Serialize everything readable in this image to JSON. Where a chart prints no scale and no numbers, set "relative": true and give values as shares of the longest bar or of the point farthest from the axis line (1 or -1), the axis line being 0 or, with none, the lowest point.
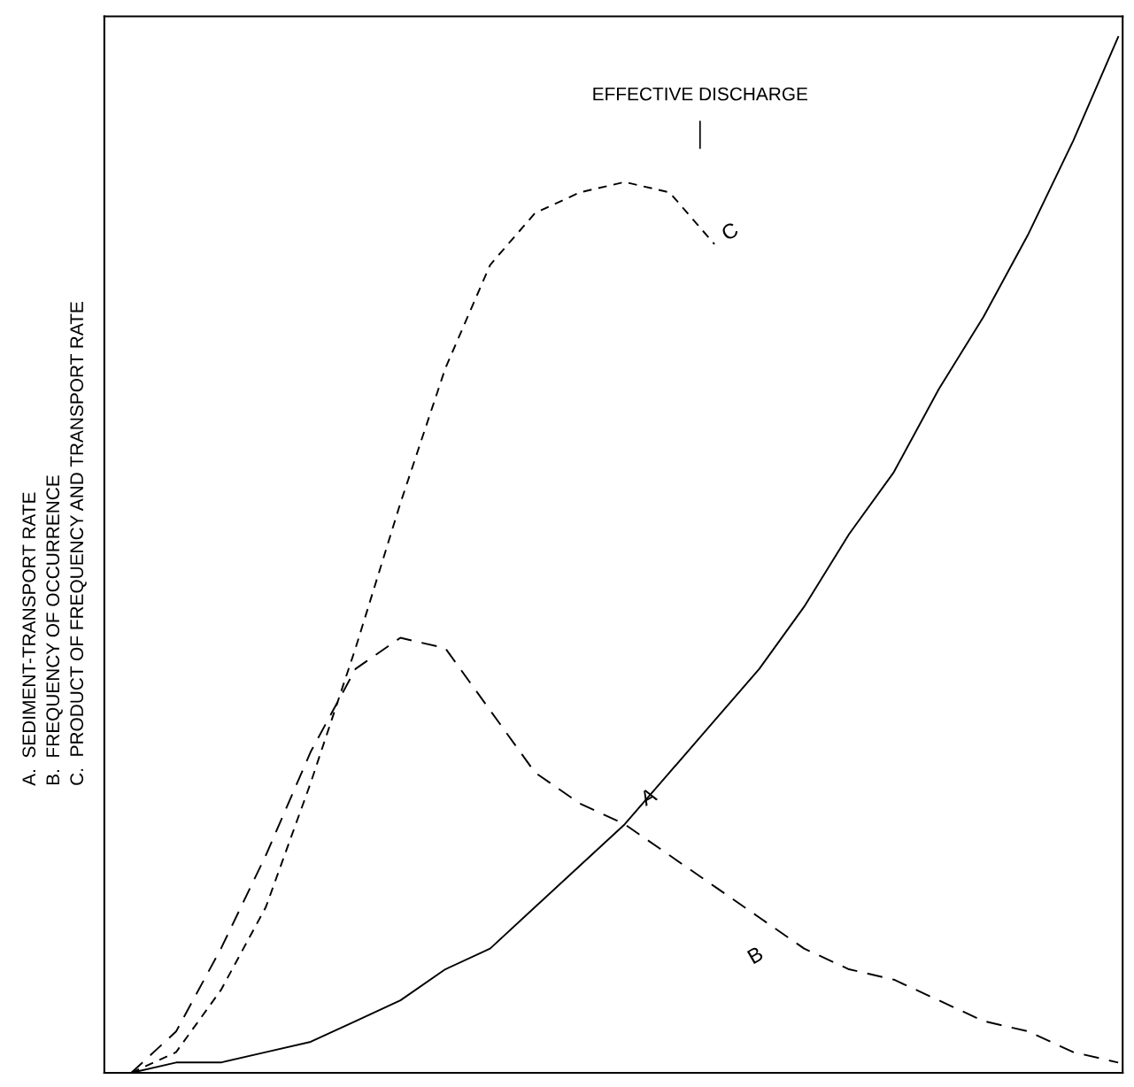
{
  "chart_data": {
    "type": "line",
    "relative": true,
    "ylabel": "A.  SEDIMENT-TRANSPORT RATE\nB.  FREQUENCY OF OCCURRENCE\nC.  PRODUCT OF FREQUENCY AND TRANSPORT RATE",
    "annotations": [
      "EFFECTIVE DISCHARGE",
      "A",
      "B",
      "C"
    ],
    "categories": [
      null,
      null,
      null,
      null,
      null,
      null,
      null,
      null,
      null,
      null,
      null,
      null,
      null,
      null,
      null,
      null,
      null,
      null,
      null,
      null,
      null,
      null,
      null
    ],
    "series": [
      {
        "color": "#000000",
        "line_style": "solid",
        "values": [
          0.0,
          0.01,
          0.01,
          0.02,
          0.03,
          0.05,
          0.07,
          0.1,
          0.12,
          0.16,
          0.2,
          0.24,
          0.29,
          0.34,
          0.39,
          0.45,
          0.52,
          0.58,
          0.66,
          0.73,
          0.81,
          0.9,
          1.0
        ]
      },
      {
        "color": "#000000",
        "line_style": "dashed",
        "values": [
          0.0,
          0.04,
          0.12,
          0.21,
          0.31,
          0.39,
          0.42,
          0.41,
          0.35,
          0.29,
          0.26,
          0.24,
          0.21,
          0.18,
          0.15,
          0.12,
          0.1,
          0.09,
          0.07,
          0.05,
          0.04,
          0.02,
          0.01
        ]
      },
      {
        "color": "#000000",
        "line_style": "dotted",
        "values": [
          0.0,
          0.02,
          0.08,
          0.16,
          0.28,
          0.41,
          0.55,
          0.68,
          0.78,
          0.83,
          0.85,
          0.86,
          0.85,
          0.8,
          null,
          null,
          null,
          null,
          null,
          null,
          null,
          null,
          null
        ]
      }
    ],
    "grid": false,
    "legend": false
  }
}
